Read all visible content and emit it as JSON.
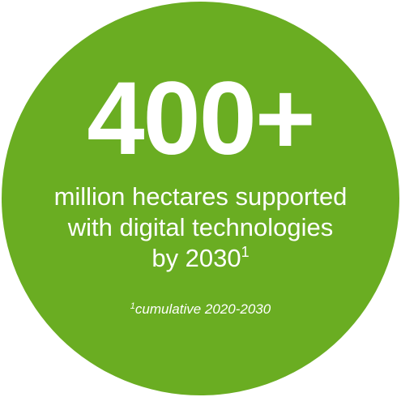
{
  "colors": {
    "circle_fill": "#6aad22",
    "text": "#ffffff",
    "background": "#ffffff"
  },
  "stat": {
    "value": "400+",
    "lines": [
      "million hectares supported",
      "with digital technologies",
      "by 2030"
    ],
    "marker": "1"
  },
  "footnote": {
    "marker": "1",
    "text": "cumulative 2020-2030"
  }
}
